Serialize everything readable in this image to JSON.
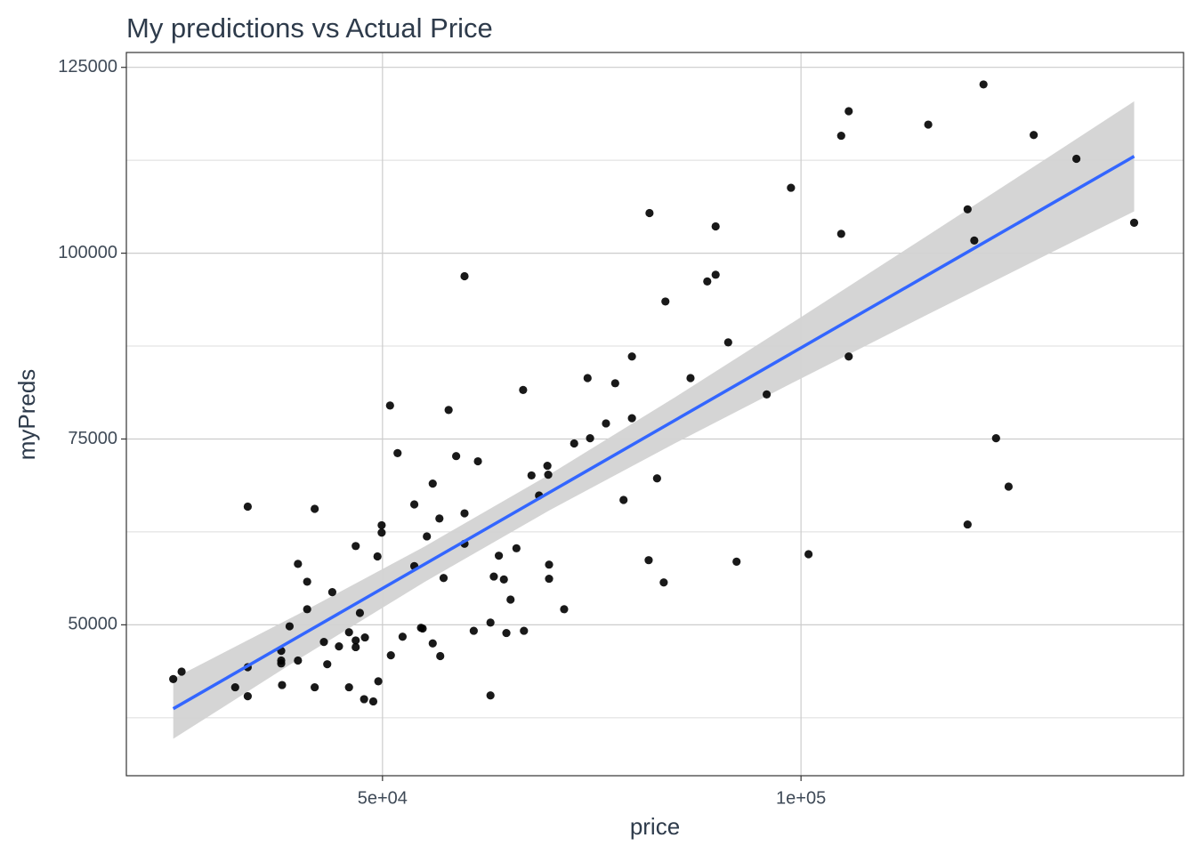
{
  "chart_data": {
    "type": "scatter",
    "title": "My predictions vs Actual Price",
    "x_label": "price",
    "y_label": "myPreds",
    "xlim": [
      19400,
      145700
    ],
    "ylim": [
      29700,
      127000
    ],
    "xticks": [
      {
        "value": 50000,
        "label": "5e+04"
      },
      {
        "value": 100000,
        "label": "1e+05"
      }
    ],
    "yticks": [
      50000,
      75000,
      100000,
      125000
    ],
    "y_minor_ticks": [
      37500,
      62500,
      87500,
      112500
    ],
    "grid": true,
    "series": [
      {
        "name": "myPreds",
        "color": "#000000",
        "x": [
          25000,
          26000,
          33900,
          33900,
          32400,
          33900,
          37900,
          37900,
          37900,
          38000,
          38900,
          39900,
          39900,
          41000,
          41000,
          41900,
          41900,
          43000,
          43400,
          44000,
          44800,
          46000,
          46000,
          46800,
          46800,
          46800,
          47300,
          47900,
          47800,
          49400,
          49500,
          48900,
          49900,
          49900,
          50900,
          51000,
          51800,
          52400,
          53800,
          53800,
          54600,
          54800,
          55300,
          56000,
          56000,
          56800,
          56900,
          57300,
          57900,
          58800,
          59800,
          59800,
          59800,
          60900,
          61400,
          62900,
          62900,
          63300,
          63900,
          64500,
          64800,
          65300,
          66000,
          66800,
          66900,
          67800,
          68700,
          69700,
          69800,
          69900,
          69900,
          71700,
          72900,
          74500,
          74800,
          76700,
          77800,
          78800,
          79800,
          79800,
          81800,
          81900,
          82800,
          83600,
          83800,
          86800,
          88800,
          89800,
          89800,
          91300,
          92300,
          95900,
          98800,
          100900,
          104800,
          104800,
          105700,
          105700,
          115200,
          119900,
          119900,
          120700,
          121800,
          123300,
          124800,
          127800,
          132900,
          139800
        ],
        "values": [
          42700,
          43700,
          65900,
          44300,
          41600,
          40400,
          46500,
          45200,
          44800,
          41900,
          49800,
          58200,
          45200,
          55800,
          52100,
          65600,
          41600,
          47700,
          44700,
          54400,
          47100,
          49000,
          41600,
          60600,
          47900,
          47000,
          51600,
          48300,
          40000,
          59200,
          42400,
          39700,
          63400,
          62400,
          79500,
          45900,
          73100,
          48400,
          66200,
          57900,
          49600,
          49500,
          61900,
          69000,
          47500,
          64300,
          45800,
          56300,
          78900,
          72700,
          65000,
          96900,
          60900,
          49200,
          72000,
          50300,
          40500,
          56500,
          59300,
          56100,
          48900,
          53400,
          60300,
          81600,
          49200,
          70100,
          67400,
          71400,
          70200,
          58100,
          56200,
          52100,
          74400,
          83200,
          75100,
          77100,
          82500,
          66800,
          86100,
          77800,
          58700,
          105400,
          69700,
          55700,
          93500,
          83200,
          96200,
          97100,
          103600,
          88000,
          58500,
          81000,
          108800,
          59500,
          115800,
          102600,
          119100,
          86100,
          117300,
          105900,
          63500,
          101700,
          122700,
          75100,
          68600,
          115900,
          112700,
          104100
        ]
      }
    ],
    "fit": {
      "color": "#3366FF",
      "band_color": "#d3d3d3",
      "x": [
        25000,
        40000,
        55000,
        70000,
        85000,
        100000,
        115000,
        130000,
        139800
      ],
      "y": [
        38715,
        48426,
        58137,
        67848,
        77559,
        87270,
        96981,
        106692,
        113033
      ],
      "lower": [
        34665,
        45389,
        55752,
        65438,
        74462,
        83143,
        91677,
        100144,
        105628
      ],
      "upper": [
        42765,
        51463,
        60522,
        70258,
        80656,
        91397,
        102285,
        113240,
        120428
      ]
    }
  }
}
